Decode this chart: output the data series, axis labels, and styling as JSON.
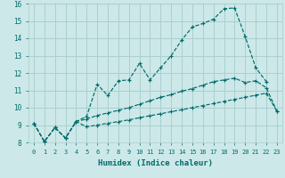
{
  "xlabel": "Humidex (Indice chaleur)",
  "xlim": [
    -0.5,
    23.5
  ],
  "ylim": [
    8,
    16
  ],
  "xticks": [
    0,
    1,
    2,
    3,
    4,
    5,
    6,
    7,
    8,
    9,
    10,
    11,
    12,
    13,
    14,
    15,
    16,
    17,
    18,
    19,
    20,
    21,
    22,
    23
  ],
  "yticks": [
    8,
    9,
    10,
    11,
    12,
    13,
    14,
    15,
    16
  ],
  "bg_color": "#cde8e8",
  "grid_color": "#aacfcf",
  "line_color": "#006b6b",
  "line1_x": [
    0,
    1,
    2,
    3,
    4,
    5,
    6,
    7,
    8,
    9,
    10,
    11,
    12,
    13,
    14,
    15,
    16,
    17,
    18,
    19,
    20,
    21,
    22
  ],
  "line1_y": [
    9.1,
    8.05,
    8.85,
    8.25,
    9.2,
    9.5,
    11.35,
    10.7,
    11.55,
    11.6,
    12.55,
    11.6,
    12.3,
    13.0,
    13.9,
    14.65,
    14.85,
    15.1,
    15.7,
    15.75,
    14.1,
    12.3,
    11.5
  ],
  "line2_x": [
    0,
    1,
    2,
    3,
    4,
    5,
    6,
    7,
    8,
    9,
    10,
    11,
    12,
    13,
    14,
    15,
    16,
    17,
    18,
    19,
    20,
    21,
    22,
    23
  ],
  "line2_y": [
    9.1,
    8.05,
    8.85,
    8.25,
    9.2,
    9.35,
    9.55,
    9.7,
    9.85,
    10.0,
    10.2,
    10.4,
    10.6,
    10.75,
    10.95,
    11.1,
    11.3,
    11.5,
    11.6,
    11.7,
    11.45,
    11.55,
    11.15,
    9.8
  ],
  "line3_x": [
    0,
    1,
    2,
    3,
    4,
    5,
    6,
    7,
    8,
    9,
    10,
    11,
    12,
    13,
    14,
    15,
    16,
    17,
    18,
    19,
    20,
    21,
    22,
    23
  ],
  "line3_y": [
    9.1,
    8.05,
    8.85,
    8.25,
    9.2,
    8.9,
    9.0,
    9.1,
    9.2,
    9.3,
    9.42,
    9.54,
    9.65,
    9.77,
    9.88,
    10.0,
    10.12,
    10.24,
    10.36,
    10.48,
    10.6,
    10.72,
    10.84,
    9.8
  ]
}
